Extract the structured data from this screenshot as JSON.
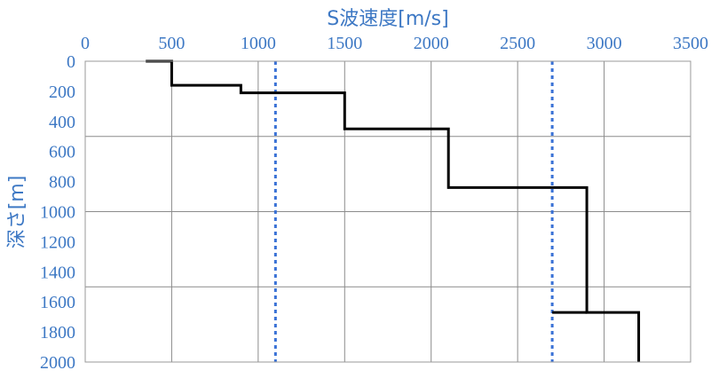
{
  "chart_data": {
    "type": "line",
    "title": "S波速度[m/s]",
    "xlabel": "S波速度[m/s]",
    "ylabel": "深さ[m]",
    "xlim": [
      0,
      3500
    ],
    "ylim": [
      0,
      2000
    ],
    "x_axis_position": "top",
    "y_axis_inverted": true,
    "x_ticks": [
      "0",
      "500",
      "1000",
      "1500",
      "2000",
      "2500",
      "3000",
      "3500"
    ],
    "y_ticks": [
      "0",
      "200",
      "400",
      "600",
      "800",
      "1000",
      "1200",
      "1400",
      "1600",
      "1800",
      "2000"
    ],
    "x_gridlines": [
      500,
      1000,
      1500,
      2000,
      2500,
      3000,
      3500
    ],
    "y_gridlines": [
      500,
      1000,
      1500
    ],
    "series": [
      {
        "type": "step",
        "color": "#000000",
        "points": [
          [
            350,
            0
          ],
          [
            500,
            0
          ],
          [
            500,
            160
          ],
          [
            900,
            160
          ],
          [
            900,
            210
          ],
          [
            1500,
            210
          ],
          [
            1500,
            450
          ],
          [
            2100,
            450
          ],
          [
            2100,
            840
          ],
          [
            2900,
            840
          ],
          [
            2900,
            1670
          ],
          [
            3200,
            1670
          ],
          [
            3200,
            2000
          ]
        ]
      },
      {
        "type": "vertical-dotted",
        "color": "#3a72d6",
        "x": 1100,
        "y_range": [
          0,
          2000
        ]
      },
      {
        "type": "vertical-dotted",
        "color": "#3a72d6",
        "x": 2700,
        "y_range": [
          0,
          2000
        ]
      },
      {
        "type": "horizontal-segment",
        "color": "#000000",
        "y": 1670,
        "x_range": [
          2700,
          2900
        ]
      }
    ]
  }
}
